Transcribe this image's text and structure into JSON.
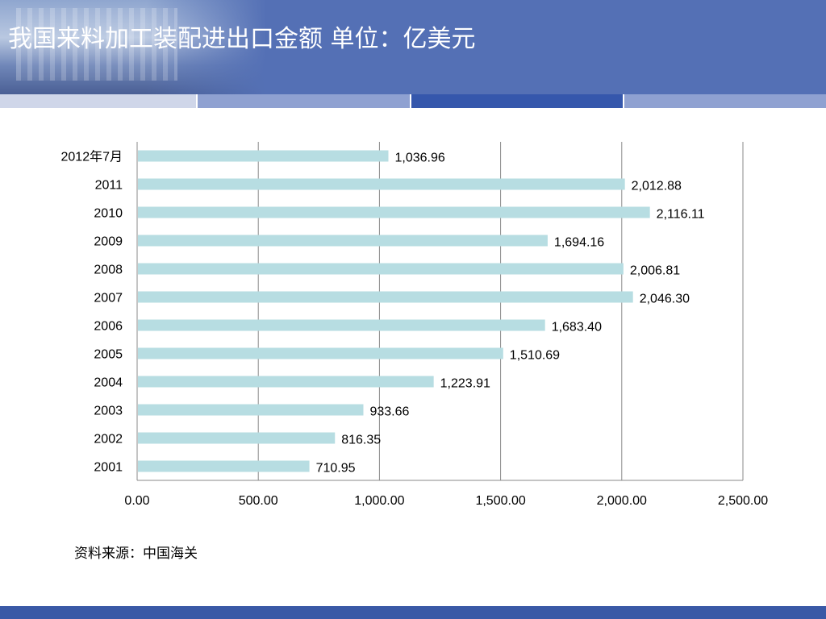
{
  "header": {
    "title": "我国来料加工装配进出口金额  单位：亿美元"
  },
  "source": "资料来源：中国海关",
  "colors": {
    "bar": "#b7dde2",
    "header": "#5470b5",
    "grid": "#888888"
  },
  "chart_data": {
    "type": "bar",
    "orientation": "horizontal",
    "title": "",
    "xlabel": "",
    "ylabel": "",
    "categories": [
      "2012年7月",
      "2011",
      "2010",
      "2009",
      "2008",
      "2007",
      "2006",
      "2005",
      "2004",
      "2003",
      "2002",
      "2001"
    ],
    "values": [
      1036.96,
      2012.88,
      2116.11,
      1694.16,
      2006.81,
      2046.3,
      1683.4,
      1510.69,
      1223.91,
      933.66,
      816.35,
      710.95
    ],
    "value_labels": [
      "1,036.96",
      "2,012.88",
      "2,116.11",
      "1,694.16",
      "2,006.81",
      "2,046.30",
      "1,683.40",
      "1,510.69",
      "1,223.91",
      "933.66",
      "816.35",
      "710.95"
    ],
    "xlim": [
      0,
      2500
    ],
    "xticks": [
      "0.00",
      "500.00",
      "1,000.00",
      "1,500.00",
      "2,000.00",
      "2,500.00"
    ],
    "grid": true,
    "legend": false
  }
}
